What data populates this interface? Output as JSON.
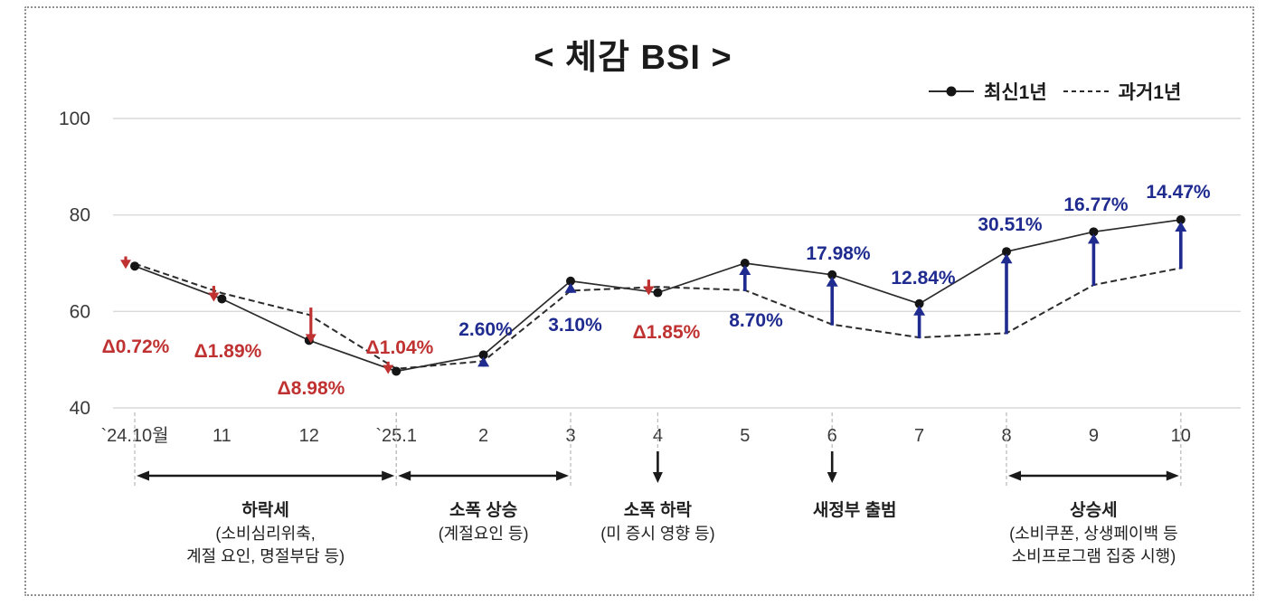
{
  "title": "< 체감 BSI >",
  "colors": {
    "red": "#c03232",
    "blue": "#1f2b8f",
    "line": "#2b2b2b",
    "marker": "#151515",
    "grid": "#d9d9d9",
    "guide": "#bdbdbd",
    "axis_text": "#3a3a3a",
    "annotation_text": "#1f1f1f",
    "arrow_black": "#1a1a1a"
  },
  "chart_data": {
    "type": "line",
    "title": "< 체감 BSI >",
    "categories": [
      "`24.10월",
      "11",
      "12",
      "`25.1",
      "2",
      "3",
      "4",
      "5",
      "6",
      "7",
      "8",
      "9",
      "10"
    ],
    "ylim": [
      40,
      100
    ],
    "yticks": [
      40,
      60,
      80,
      100
    ],
    "grid": true,
    "legend_position": "top-right",
    "series": [
      {
        "name": "최신1년",
        "style": "solid",
        "marker": "circle",
        "values": [
          69.4,
          62.6,
          54.0,
          47.6,
          51.0,
          66.3,
          63.9,
          70.0,
          67.6,
          61.6,
          72.4,
          76.5,
          79.0
        ]
      },
      {
        "name": "과거1년",
        "style": "dashed",
        "marker": "none",
        "values": [
          69.9,
          63.8,
          59.3,
          48.1,
          49.7,
          64.3,
          65.1,
          64.4,
          57.3,
          54.6,
          55.5,
          65.5,
          69.0
        ]
      }
    ],
    "change_labels": [
      {
        "index": 0,
        "text": "Δ0.72%",
        "direction": "down",
        "color_key": "red",
        "arrow_dx": -10,
        "label_pos": [
          150,
          390
        ]
      },
      {
        "index": 1,
        "text": "Δ1.89%",
        "direction": "down",
        "color_key": "red",
        "arrow_dx": -9,
        "label_pos": [
          252,
          395
        ]
      },
      {
        "index": 2,
        "text": "Δ8.98%",
        "direction": "down",
        "color_key": "red",
        "arrow_dx": 2,
        "label_pos": [
          344,
          436
        ]
      },
      {
        "index": 3,
        "text": "Δ1.04%",
        "direction": "down",
        "color_key": "red",
        "arrow_dx": -9,
        "label_pos": [
          442,
          391
        ]
      },
      {
        "index": 4,
        "text": "2.60%",
        "direction": "up",
        "color_key": "blue",
        "arrow_dx": 0,
        "label_pos": [
          537,
          371
        ]
      },
      {
        "index": 5,
        "text": "3.10%",
        "direction": "up",
        "color_key": "blue",
        "arrow_dx": 0,
        "label_pos": [
          636,
          366
        ]
      },
      {
        "index": 6,
        "text": "Δ1.85%",
        "direction": "down",
        "color_key": "red",
        "arrow_dx": -10,
        "label_pos": [
          737,
          374
        ]
      },
      {
        "index": 7,
        "text": "8.70%",
        "direction": "up",
        "color_key": "blue",
        "arrow_dx": 0,
        "label_pos": [
          836,
          361
        ]
      },
      {
        "index": 8,
        "text": "17.98%",
        "direction": "up",
        "color_key": "blue",
        "arrow_dx": 0,
        "label_pos": [
          927,
          287
        ]
      },
      {
        "index": 9,
        "text": "12.84%",
        "direction": "up",
        "color_key": "blue",
        "arrow_dx": 0,
        "label_pos": [
          1021,
          314
        ]
      },
      {
        "index": 10,
        "text": "30.51%",
        "direction": "up",
        "color_key": "blue",
        "arrow_dx": 0,
        "label_pos": [
          1117,
          255
        ]
      },
      {
        "index": 11,
        "text": "16.77%",
        "direction": "up",
        "color_key": "blue",
        "arrow_dx": 0,
        "label_pos": [
          1212,
          233
        ]
      },
      {
        "index": 12,
        "text": "14.47%",
        "direction": "up",
        "color_key": "blue",
        "arrow_dx": 0,
        "label_pos": [
          1303,
          219
        ]
      }
    ],
    "annotations": [
      {
        "type": "range",
        "from_index": 0,
        "to_index": 3,
        "label": "하락세",
        "sub": [
          "(소비심리위축,",
          "계절 요인, 명절부담 등)"
        ],
        "label_dx": 0
      },
      {
        "type": "range",
        "from_index": 3,
        "to_index": 5,
        "label": "소폭 상승",
        "sub": [
          "(계절요인 등)"
        ],
        "label_dx": 0
      },
      {
        "type": "point",
        "index": 6,
        "label": "소폭 하락",
        "sub": [
          "(미 증시 영향 등)"
        ],
        "label_dx": 0
      },
      {
        "type": "point",
        "index": 8,
        "label": "새정부 출범",
        "sub": [],
        "label_dx": 25
      },
      {
        "type": "range",
        "from_index": 10,
        "to_index": 12,
        "label": "상승세",
        "sub": [
          "(소비쿠폰, 상생페이백 등",
          "소비프로그램 집중 시행)"
        ],
        "label_dx": 0
      }
    ]
  }
}
